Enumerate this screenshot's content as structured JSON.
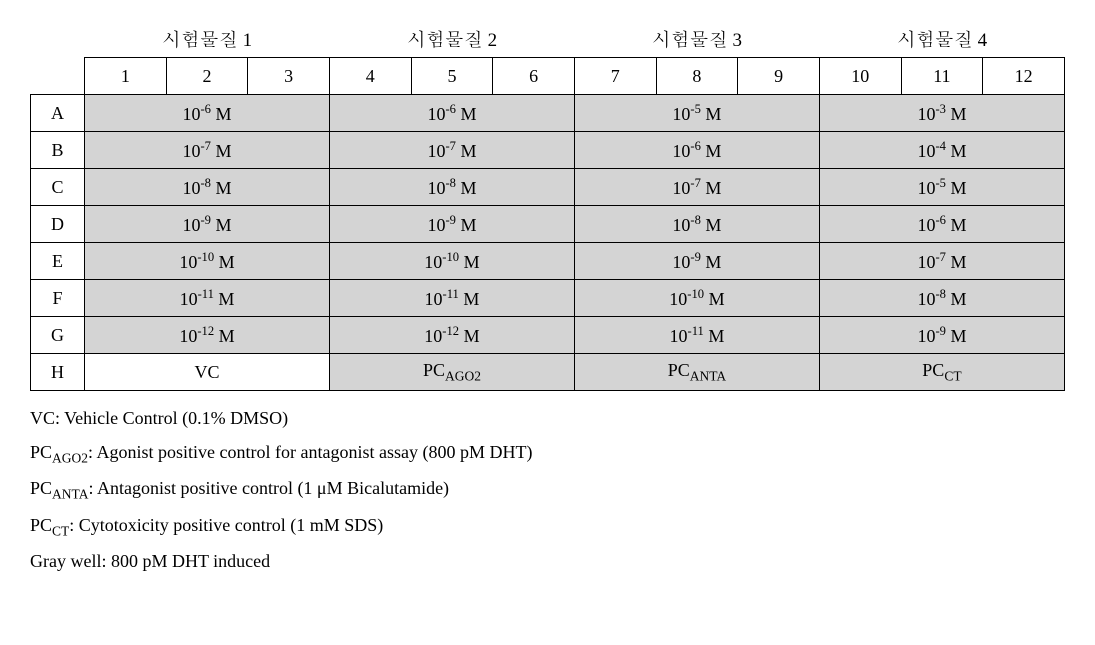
{
  "group_headers": [
    "시험물질 1",
    "시험물질 2",
    "시험물질 3",
    "시험물질 4"
  ],
  "col_numbers": [
    "1",
    "2",
    "3",
    "4",
    "5",
    "6",
    "7",
    "8",
    "9",
    "10",
    "11",
    "12"
  ],
  "row_labels": [
    "A",
    "B",
    "C",
    "D",
    "E",
    "F",
    "G",
    "H"
  ],
  "data_rows": [
    {
      "gray": true,
      "cells": [
        {
          "exp": "-6"
        },
        {
          "exp": "-6"
        },
        {
          "exp": "-5"
        },
        {
          "exp": "-3"
        }
      ]
    },
    {
      "gray": true,
      "cells": [
        {
          "exp": "-7"
        },
        {
          "exp": "-7"
        },
        {
          "exp": "-6"
        },
        {
          "exp": "-4"
        }
      ]
    },
    {
      "gray": true,
      "cells": [
        {
          "exp": "-8"
        },
        {
          "exp": "-8"
        },
        {
          "exp": "-7"
        },
        {
          "exp": "-5"
        }
      ]
    },
    {
      "gray": true,
      "cells": [
        {
          "exp": "-9"
        },
        {
          "exp": "-9"
        },
        {
          "exp": "-8"
        },
        {
          "exp": "-6"
        }
      ]
    },
    {
      "gray": true,
      "cells": [
        {
          "exp": "-10"
        },
        {
          "exp": "-10"
        },
        {
          "exp": "-9"
        },
        {
          "exp": "-7"
        }
      ]
    },
    {
      "gray": true,
      "cells": [
        {
          "exp": "-11"
        },
        {
          "exp": "-11"
        },
        {
          "exp": "-10"
        },
        {
          "exp": "-8"
        }
      ]
    },
    {
      "gray": true,
      "cells": [
        {
          "exp": "-12"
        },
        {
          "exp": "-12"
        },
        {
          "exp": "-11"
        },
        {
          "exp": "-9"
        }
      ]
    }
  ],
  "row_h": [
    {
      "text": "VC",
      "sub": "",
      "gray": false
    },
    {
      "text": "PC",
      "sub": "AGO2",
      "gray": true
    },
    {
      "text": "PC",
      "sub": "ANTA",
      "gray": true
    },
    {
      "text": "PC",
      "sub": "CT",
      "gray": true
    }
  ],
  "legend": {
    "l1_pre": "VC: Vehicle Control (0.1% DMSO)",
    "l2_main": "PC",
    "l2_sub": "AGO2",
    "l2_rest": ": Agonist positive control for antagonist assay (800 pM DHT)",
    "l3_main": "PC",
    "l3_sub": "ANTA",
    "l3_rest": ": Antagonist positive control (1 μM Bicalutamide)",
    "l4_main": "PC",
    "l4_sub": "CT",
    "l4_rest": ": Cytotoxicity positive control (1 mM SDS)",
    "l5": "Gray well: 800 pM DHT induced"
  },
  "colors": {
    "gray_cell": "#d4d4d4",
    "white_cell": "#ffffff",
    "border": "#000000",
    "text": "#000000"
  }
}
